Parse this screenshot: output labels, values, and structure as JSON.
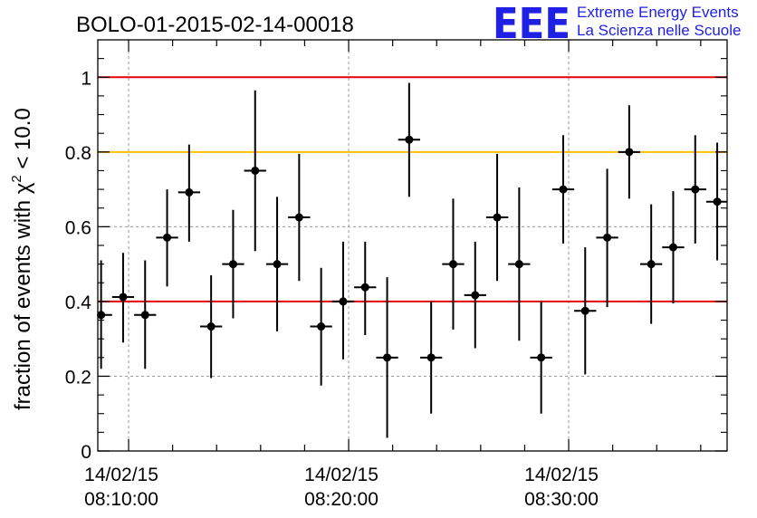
{
  "header": {
    "title": "BOLO-01-2015-02-14-00018",
    "logo": {
      "mark": "EEE",
      "line1": "Extreme Energy Events",
      "line2": "La Scienza nelle Scuole",
      "color": "#1f1fe6"
    }
  },
  "chart_data": {
    "type": "scatter",
    "ylabel": "fraction of events with χ² < 10.0",
    "ylabel_main": "fraction of events with ",
    "ylabel_symbol": "χ",
    "ylabel_exp": "2",
    "ylabel_tail": " < 10.0",
    "xlim_minutes": [
      8.6,
      37.2
    ],
    "ylim": [
      0,
      1.1
    ],
    "x_unit_note": "minutes after 08:00:00 on 14/02/15",
    "x_ticks": [
      {
        "x": 10,
        "date": "14/02/15",
        "time": "08:10:00"
      },
      {
        "x": 20,
        "date": "14/02/15",
        "time": "08:20:00"
      },
      {
        "x": 30,
        "date": "14/02/15",
        "time": "08:30:00"
      }
    ],
    "y_ticks": [
      {
        "y": 0,
        "label": "0"
      },
      {
        "y": 0.2,
        "label": "0.2"
      },
      {
        "y": 0.4,
        "label": "0.4"
      },
      {
        "y": 0.6,
        "label": "0.6"
      },
      {
        "y": 0.8,
        "label": "0.8"
      },
      {
        "y": 1,
        "label": "1"
      }
    ],
    "reference_lines": [
      {
        "y": 1.0,
        "color": "#e60000"
      },
      {
        "y": 0.8,
        "color": "#ffc000"
      },
      {
        "y": 0.4,
        "color": "#e60000"
      }
    ],
    "grid": true,
    "point_color": "#000000",
    "bin_half_width_minutes": 0.5,
    "points": [
      {
        "x": 8.75,
        "y": 0.364,
        "ylo": 0.22,
        "yhi": 0.51
      },
      {
        "x": 9.75,
        "y": 0.412,
        "ylo": 0.29,
        "yhi": 0.53
      },
      {
        "x": 10.75,
        "y": 0.364,
        "ylo": 0.22,
        "yhi": 0.51
      },
      {
        "x": 11.75,
        "y": 0.571,
        "ylo": 0.44,
        "yhi": 0.7
      },
      {
        "x": 12.75,
        "y": 0.692,
        "ylo": 0.56,
        "yhi": 0.82
      },
      {
        "x": 13.75,
        "y": 0.333,
        "ylo": 0.195,
        "yhi": 0.47
      },
      {
        "x": 14.75,
        "y": 0.5,
        "ylo": 0.355,
        "yhi": 0.645
      },
      {
        "x": 15.75,
        "y": 0.75,
        "ylo": 0.535,
        "yhi": 0.965
      },
      {
        "x": 16.75,
        "y": 0.5,
        "ylo": 0.32,
        "yhi": 0.68
      },
      {
        "x": 17.75,
        "y": 0.625,
        "ylo": 0.455,
        "yhi": 0.795
      },
      {
        "x": 18.75,
        "y": 0.333,
        "ylo": 0.175,
        "yhi": 0.49
      },
      {
        "x": 19.75,
        "y": 0.4,
        "ylo": 0.245,
        "yhi": 0.56
      },
      {
        "x": 20.75,
        "y": 0.438,
        "ylo": 0.31,
        "yhi": 0.56
      },
      {
        "x": 21.75,
        "y": 0.25,
        "ylo": 0.035,
        "yhi": 0.465
      },
      {
        "x": 22.75,
        "y": 0.833,
        "ylo": 0.68,
        "yhi": 0.985
      },
      {
        "x": 23.75,
        "y": 0.25,
        "ylo": 0.1,
        "yhi": 0.4
      },
      {
        "x": 24.75,
        "y": 0.5,
        "ylo": 0.325,
        "yhi": 0.675
      },
      {
        "x": 25.75,
        "y": 0.417,
        "ylo": 0.275,
        "yhi": 0.56
      },
      {
        "x": 26.75,
        "y": 0.625,
        "ylo": 0.455,
        "yhi": 0.795
      },
      {
        "x": 27.75,
        "y": 0.5,
        "ylo": 0.295,
        "yhi": 0.705
      },
      {
        "x": 28.75,
        "y": 0.25,
        "ylo": 0.1,
        "yhi": 0.4
      },
      {
        "x": 29.75,
        "y": 0.7,
        "ylo": 0.555,
        "yhi": 0.845
      },
      {
        "x": 30.75,
        "y": 0.375,
        "ylo": 0.205,
        "yhi": 0.545
      },
      {
        "x": 31.75,
        "y": 0.571,
        "ylo": 0.385,
        "yhi": 0.755
      },
      {
        "x": 32.75,
        "y": 0.8,
        "ylo": 0.675,
        "yhi": 0.925
      },
      {
        "x": 33.75,
        "y": 0.5,
        "ylo": 0.34,
        "yhi": 0.66
      },
      {
        "x": 34.75,
        "y": 0.545,
        "ylo": 0.395,
        "yhi": 0.695
      },
      {
        "x": 35.75,
        "y": 0.7,
        "ylo": 0.555,
        "yhi": 0.845
      },
      {
        "x": 36.75,
        "y": 0.667,
        "ylo": 0.51,
        "yhi": 0.825
      }
    ]
  }
}
